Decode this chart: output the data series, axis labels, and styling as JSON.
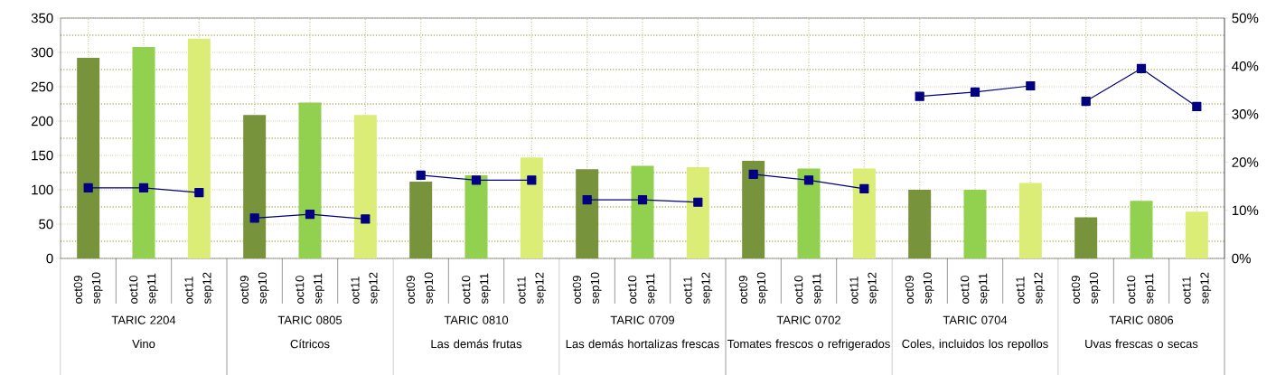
{
  "chart_data": {
    "type": "bar",
    "categories": [
      "oct09 sep10",
      "oct10 sep11",
      "oct11 sep12",
      "oct09 sep10",
      "oct10 sep11",
      "oct11 sep12",
      "oct09 sep10",
      "oct10 sep11",
      "oct11 sep12",
      "oct09 sep10",
      "oct10 sep11",
      "oct11 sep12",
      "oct09 sep10",
      "oct10 sep11",
      "oct11 sep12",
      "oct09 sep10",
      "oct10 sep11",
      "oct11 sep12",
      "oct09 sep10",
      "oct10 sep11",
      "oct11 sep12"
    ],
    "series": [
      {
        "colors": [
          "#77933c",
          "#92d050",
          "#dbed76",
          "#77933c",
          "#92d050",
          "#dbed76",
          "#77933c",
          "#92d050",
          "#dbed76",
          "#77933c",
          "#92d050",
          "#dbed76",
          "#77933c",
          "#92d050",
          "#dbed76",
          "#77933c",
          "#92d050",
          "#dbed76",
          "#77933c",
          "#92d050",
          "#dbed76"
        ],
        "values": [
          292,
          308,
          320,
          209,
          227,
          209,
          112,
          121,
          147,
          130,
          135,
          133,
          142,
          131,
          131,
          100,
          100,
          110,
          60,
          84,
          68
        ]
      },
      {
        "type": "line",
        "axis": "y2",
        "color": "#000080",
        "values": [
          14.7,
          14.7,
          13.7,
          null,
          null,
          null,
          null,
          null,
          null,
          null,
          null,
          null,
          null,
          null,
          null,
          null,
          null,
          null,
          null,
          null,
          null
        ]
      },
      {
        "type": "line",
        "axis": "y2",
        "color": "#000080",
        "values": [
          null,
          null,
          null,
          8.4,
          9.2,
          8.2,
          null,
          null,
          null,
          null,
          null,
          null,
          null,
          null,
          null,
          null,
          null,
          null,
          null,
          null,
          null
        ]
      },
      {
        "type": "line",
        "axis": "y2",
        "color": "#000080",
        "values": [
          null,
          null,
          null,
          null,
          null,
          null,
          17.3,
          16.3,
          16.3,
          null,
          null,
          null,
          null,
          null,
          null,
          null,
          null,
          null,
          null,
          null,
          null
        ]
      },
      {
        "type": "line",
        "axis": "y2",
        "color": "#000080",
        "values": [
          null,
          null,
          null,
          null,
          null,
          null,
          null,
          null,
          null,
          12.2,
          12.2,
          11.7,
          null,
          null,
          null,
          null,
          null,
          null,
          null,
          null,
          null
        ]
      },
      {
        "type": "line",
        "axis": "y2",
        "color": "#000080",
        "values": [
          null,
          null,
          null,
          null,
          null,
          null,
          null,
          null,
          null,
          null,
          null,
          null,
          17.5,
          16.3,
          14.5,
          null,
          null,
          null,
          null,
          null,
          null
        ]
      },
      {
        "type": "line",
        "axis": "y2",
        "color": "#000080",
        "values": [
          null,
          null,
          null,
          null,
          null,
          null,
          null,
          null,
          null,
          null,
          null,
          null,
          null,
          null,
          null,
          33.7,
          34.6,
          35.9,
          null,
          null,
          null
        ]
      },
      {
        "type": "line",
        "axis": "y2",
        "color": "#000080",
        "values": [
          null,
          null,
          null,
          null,
          null,
          null,
          null,
          null,
          null,
          null,
          null,
          null,
          null,
          null,
          null,
          null,
          null,
          null,
          32.7,
          39.5,
          31.6
        ]
      }
    ],
    "ylim": [
      0,
      350
    ],
    "yticks": [
      0,
      50,
      100,
      150,
      200,
      250,
      300,
      350
    ],
    "y2lim": [
      0,
      50
    ],
    "y2ticks": [
      {
        "value": 0,
        "label": "0%"
      },
      {
        "value": 10,
        "label": "10%"
      },
      {
        "value": 20,
        "label": "20%"
      },
      {
        "value": 30,
        "label": "30%"
      },
      {
        "value": 40,
        "label": "40%"
      },
      {
        "value": 50,
        "label": "50%"
      }
    ],
    "grid": true,
    "marker": "square",
    "annotations": [
      "TARIC 2204",
      "Vino",
      "TARIC 0805",
      "Cítricos",
      "TARIC 0810",
      "Las demás frutas",
      "TARIC 0709",
      "Las demás hortalizas frescas",
      "TARIC 0702",
      "Tomates frescos o refrigerados",
      "TARIC 0704",
      "Coles, incluidos los repollos",
      "TARIC 0806",
      "Uvas frescas o secas"
    ]
  }
}
